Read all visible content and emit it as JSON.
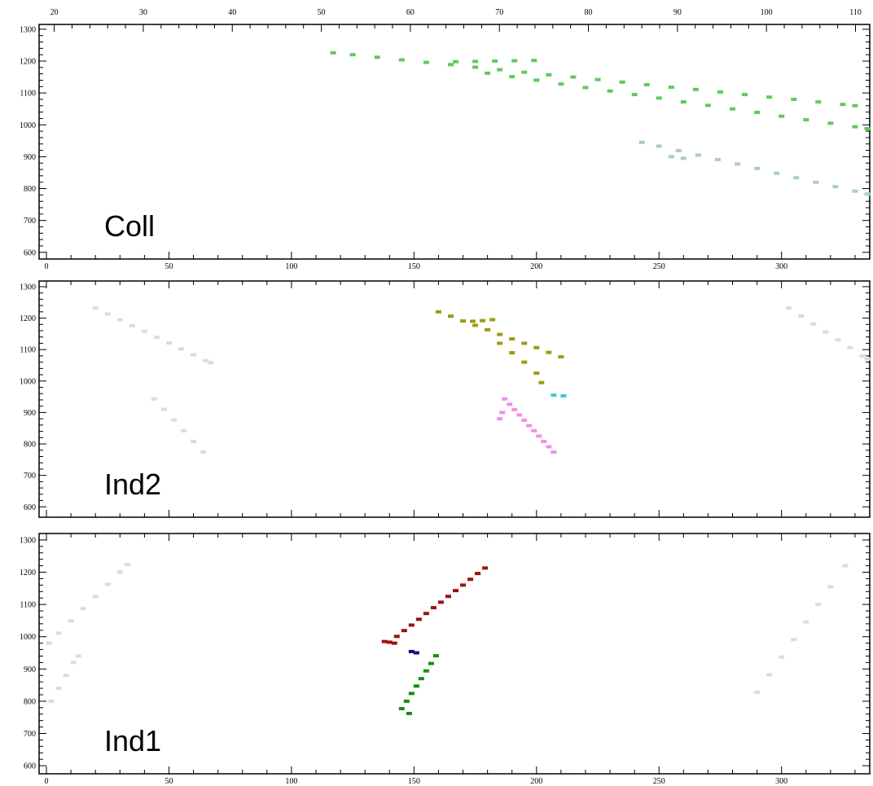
{
  "chart_data": [
    {
      "type": "scatter",
      "title": "Coll",
      "xlim": [
        -3,
        336
      ],
      "xticks": [
        0,
        50,
        100,
        150,
        200,
        250,
        300
      ],
      "x2lim": [
        18.3,
        111.6
      ],
      "x2ticks": [
        20,
        30,
        40,
        50,
        60,
        70,
        80,
        90,
        100,
        110
      ],
      "ylim": [
        579,
        1315
      ],
      "yticks": [
        600,
        700,
        800,
        900,
        1000,
        1100,
        1200,
        1300
      ],
      "series": [
        {
          "color": "#5ccc5c",
          "x": [
            117,
            125,
            135,
            145,
            155,
            165,
            175,
            185,
            195,
            205,
            215,
            225,
            235,
            245,
            255,
            265,
            275,
            285,
            295,
            305,
            315,
            325,
            330
          ],
          "values": [
            1226,
            1220,
            1212,
            1204,
            1196,
            1189,
            1181,
            1173,
            1165,
            1157,
            1150,
            1142,
            1134,
            1126,
            1118,
            1111,
            1103,
            1095,
            1087,
            1080,
            1072,
            1064,
            1060
          ]
        },
        {
          "color": "#5ccc5c",
          "x": [
            180,
            190,
            200,
            210,
            220,
            230,
            240,
            250,
            260,
            270,
            280,
            290,
            300,
            310,
            320,
            330,
            335
          ],
          "values": [
            1162,
            1151,
            1140,
            1128,
            1117,
            1106,
            1095,
            1084,
            1072,
            1061,
            1050,
            1039,
            1027,
            1016,
            1005,
            994,
            988
          ]
        },
        {
          "color": "#5ccc5c",
          "x": [
            167,
            175,
            183,
            191,
            199
          ],
          "values": [
            1198,
            1199,
            1200,
            1201,
            1202
          ]
        },
        {
          "color": "#a8d0b8",
          "x": [
            243,
            250,
            255,
            258,
            260,
            266,
            274,
            282,
            290,
            298,
            306,
            314,
            322,
            330,
            335
          ],
          "values": [
            945,
            933,
            900,
            919,
            895,
            905,
            891,
            877,
            863,
            848,
            834,
            820,
            806,
            792,
            783
          ]
        }
      ]
    },
    {
      "type": "scatter",
      "title": "Ind2",
      "xlim": [
        -3,
        336
      ],
      "xticks": [
        0,
        50,
        100,
        150,
        200,
        250,
        300
      ],
      "ylim": [
        567,
        1318
      ],
      "yticks": [
        600,
        700,
        800,
        900,
        1000,
        1100,
        1200,
        1300
      ],
      "series": [
        {
          "color": "#dcdcdc",
          "x": [
            20,
            25,
            30,
            35,
            40,
            45,
            50,
            55,
            60,
            65,
            67
          ],
          "values": [
            1232,
            1213,
            1195,
            1176,
            1158,
            1139,
            1121,
            1102,
            1084,
            1065,
            1058
          ]
        },
        {
          "color": "#dcdcdc",
          "x": [
            44,
            48,
            52,
            56,
            60,
            64
          ],
          "values": [
            943,
            910,
            876,
            842,
            808,
            774
          ]
        },
        {
          "color": "#dcdcdc",
          "x": [
            303,
            308,
            313,
            318,
            323,
            328,
            333,
            335
          ],
          "values": [
            1232,
            1207,
            1181,
            1156,
            1131,
            1106,
            1080,
            1070
          ]
        },
        {
          "color": "#a09a10",
          "x": [
            160,
            165,
            170,
            175,
            180,
            185,
            190,
            195,
            200,
            205,
            210
          ],
          "values": [
            1220,
            1206,
            1191,
            1177,
            1163,
            1148,
            1134,
            1120,
            1106,
            1091,
            1077
          ]
        },
        {
          "color": "#a09a10",
          "x": [
            185,
            190,
            195,
            200,
            202,
            174,
            178,
            182
          ],
          "values": [
            1120,
            1090,
            1060,
            1025,
            995,
            1190,
            1192,
            1195
          ]
        },
        {
          "color": "#f090e8",
          "x": [
            187,
            189,
            191,
            193,
            195,
            197,
            199,
            201,
            203,
            205,
            207,
            185,
            186
          ],
          "values": [
            943,
            926,
            909,
            892,
            875,
            858,
            842,
            825,
            808,
            791,
            774,
            880,
            900
          ]
        },
        {
          "color": "#40c8d0",
          "x": [
            207,
            211
          ],
          "values": [
            955,
            953
          ]
        }
      ]
    },
    {
      "type": "scatter",
      "title": "Ind1",
      "xlim": [
        -3,
        336
      ],
      "xticks": [
        0,
        50,
        100,
        150,
        200,
        250,
        300
      ],
      "ylim": [
        575,
        1320
      ],
      "yticks": [
        600,
        700,
        800,
        900,
        1000,
        1100,
        1200,
        1300
      ],
      "series": [
        {
          "color": "#dcdcdc",
          "x": [
            1,
            5,
            10,
            15,
            20,
            25,
            30,
            33
          ],
          "values": [
            980,
            1011,
            1049,
            1087,
            1125,
            1163,
            1201,
            1224
          ]
        },
        {
          "color": "#dcdcdc",
          "x": [
            2,
            5,
            8,
            11,
            13
          ],
          "values": [
            800,
            840,
            880,
            920,
            940
          ]
        },
        {
          "color": "#dcdcdc",
          "x": [
            290,
            295,
            300,
            305,
            310,
            315,
            320,
            326
          ],
          "values": [
            828,
            882,
            937,
            991,
            1046,
            1100,
            1155,
            1220
          ]
        },
        {
          "color": "#a01010",
          "x": [
            140,
            143,
            146,
            149,
            152,
            155,
            158,
            161,
            164,
            167,
            170,
            173,
            176,
            179,
            138,
            142
          ],
          "values": [
            983,
            1001,
            1019,
            1036,
            1054,
            1072,
            1090,
            1107,
            1125,
            1143,
            1160,
            1178,
            1196,
            1213,
            985,
            980
          ]
        },
        {
          "color": "#101080",
          "x": [
            149,
            151
          ],
          "values": [
            954,
            950
          ]
        },
        {
          "color": "#109010",
          "x": [
            145,
            147,
            149,
            151,
            153,
            155,
            157,
            159,
            148
          ],
          "values": [
            777,
            800,
            824,
            847,
            870,
            894,
            917,
            941,
            762
          ]
        }
      ]
    }
  ]
}
